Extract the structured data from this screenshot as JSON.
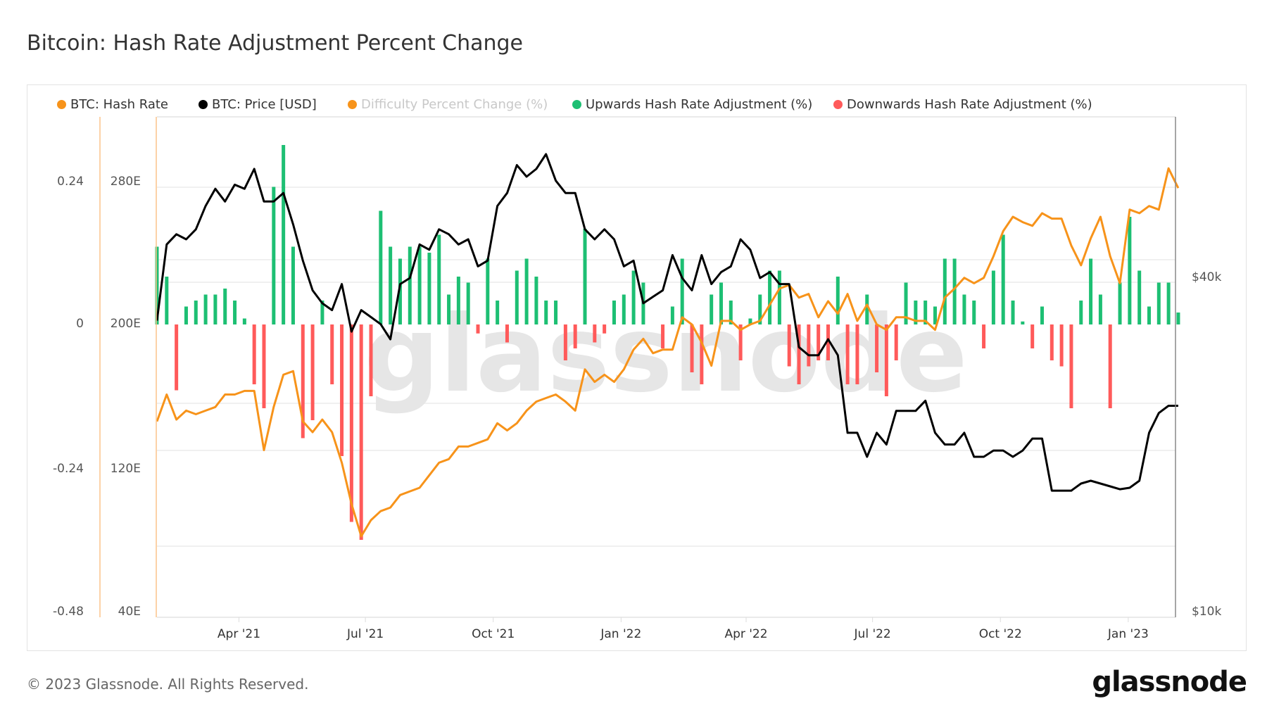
{
  "title": "Bitcoin: Hash Rate Adjustment Percent Change",
  "legend": [
    {
      "label": "BTC: Hash Rate",
      "color": "#f7931a",
      "active": true
    },
    {
      "label": "BTC: Price [USD]",
      "color": "#000000",
      "active": true
    },
    {
      "label": "Difficulty Percent Change (%)",
      "color": "#f7931a",
      "active": false
    },
    {
      "label": "Upwards Hash Rate Adjustment (%)",
      "color": "#1dbf73",
      "active": true
    },
    {
      "label": "Downwards Hash Rate Adjustment (%)",
      "color": "#ff5a5a",
      "active": true
    }
  ],
  "watermark": "glassnode",
  "footer": {
    "copyright": "© 2023 Glassnode. All Rights Reserved.",
    "logo": "glassnode"
  },
  "chart_data": {
    "type": "line+bar",
    "title": "Bitcoin: Hash Rate Adjustment Percent Change",
    "grid": true,
    "legend_position": "top",
    "x_ticks": [
      "Apr '21",
      "Jul '21",
      "Oct '21",
      "Jan '22",
      "Apr '22",
      "Jul '22",
      "Oct '22",
      "Jan '23"
    ],
    "y_axes": {
      "percent": {
        "ticks": [
          "0.24",
          "0",
          "-0.24",
          "-0.48"
        ],
        "range": [
          -0.48,
          0.24
        ]
      },
      "hash_rate": {
        "ticks": [
          "280E",
          "200E",
          "120E",
          "40E"
        ],
        "range": [
          40,
          280
        ]
      },
      "price": {
        "ticks": [
          "$40k",
          "$10k"
        ],
        "scale": "log"
      }
    },
    "x": [
      "2021-02-01",
      "2021-02-08",
      "2021-02-15",
      "2021-02-22",
      "2021-03-01",
      "2021-03-08",
      "2021-03-15",
      "2021-03-22",
      "2021-03-29",
      "2021-04-05",
      "2021-04-12",
      "2021-04-19",
      "2021-04-26",
      "2021-05-03",
      "2021-05-10",
      "2021-05-17",
      "2021-05-24",
      "2021-05-31",
      "2021-06-07",
      "2021-06-14",
      "2021-06-21",
      "2021-06-28",
      "2021-07-05",
      "2021-07-12",
      "2021-07-19",
      "2021-07-26",
      "2021-08-02",
      "2021-08-09",
      "2021-08-16",
      "2021-08-23",
      "2021-08-30",
      "2021-09-06",
      "2021-09-13",
      "2021-09-20",
      "2021-09-27",
      "2021-10-04",
      "2021-10-11",
      "2021-10-18",
      "2021-10-25",
      "2021-11-01",
      "2021-11-08",
      "2021-11-15",
      "2021-11-22",
      "2021-11-29",
      "2021-12-06",
      "2021-12-13",
      "2021-12-20",
      "2021-12-27",
      "2022-01-03",
      "2022-01-10",
      "2022-01-17",
      "2022-01-24",
      "2022-01-31",
      "2022-02-07",
      "2022-02-14",
      "2022-02-21",
      "2022-02-28",
      "2022-03-07",
      "2022-03-14",
      "2022-03-21",
      "2022-03-28",
      "2022-04-04",
      "2022-04-11",
      "2022-04-18",
      "2022-04-25",
      "2022-05-02",
      "2022-05-09",
      "2022-05-16",
      "2022-05-23",
      "2022-05-30",
      "2022-06-06",
      "2022-06-13",
      "2022-06-20",
      "2022-06-27",
      "2022-07-04",
      "2022-07-11",
      "2022-07-18",
      "2022-07-25",
      "2022-08-01",
      "2022-08-08",
      "2022-08-15",
      "2022-08-22",
      "2022-08-29",
      "2022-09-05",
      "2022-09-12",
      "2022-09-19",
      "2022-09-26",
      "2022-10-03",
      "2022-10-10",
      "2022-10-17",
      "2022-10-24",
      "2022-10-31",
      "2022-11-07",
      "2022-11-14",
      "2022-11-21",
      "2022-11-28",
      "2022-12-05",
      "2022-12-12",
      "2022-12-19",
      "2022-12-26",
      "2023-01-02",
      "2023-01-09",
      "2023-01-16",
      "2023-01-23",
      "2023-01-30",
      "2023-02-06"
    ],
    "series": [
      {
        "name": "BTC: Hash Rate",
        "axis": "hash_rate",
        "type": "line",
        "color": "#f7931a",
        "values": [
          146,
          161,
          147,
          152,
          150,
          152,
          154,
          161,
          161,
          163,
          163,
          130,
          154,
          172,
          174,
          146,
          140,
          147,
          140,
          123,
          100,
          82,
          91,
          96,
          98,
          105,
          107,
          109,
          116,
          123,
          125,
          132,
          132,
          134,
          136,
          145,
          141,
          145,
          152,
          157,
          159,
          161,
          157,
          152,
          175,
          168,
          172,
          168,
          175,
          186,
          192,
          184,
          186,
          186,
          204,
          200,
          190,
          177,
          202,
          202,
          197,
          200,
          202,
          211,
          220,
          222,
          215,
          217,
          204,
          213,
          206,
          217,
          202,
          211,
          200,
          197,
          204,
          204,
          202,
          202,
          197,
          215,
          220,
          226,
          223,
          226,
          238,
          252,
          260,
          257,
          255,
          262,
          259,
          259,
          244,
          233,
          248,
          260,
          238,
          223,
          264,
          262,
          266,
          264,
          287,
          276
        ]
      },
      {
        "name": "BTC: Price [USD]",
        "axis": "price",
        "type": "line",
        "color": "#000000",
        "values": [
          33500,
          46000,
          48000,
          47000,
          49000,
          54000,
          58000,
          55000,
          59000,
          58000,
          63000,
          55000,
          55000,
          57000,
          50000,
          43000,
          38000,
          36000,
          35000,
          39000,
          32000,
          35000,
          34000,
          33000,
          31000,
          39000,
          40000,
          46000,
          45000,
          49000,
          48000,
          46000,
          47000,
          42000,
          43000,
          54000,
          57000,
          64000,
          61000,
          63000,
          67000,
          60000,
          57000,
          57000,
          49000,
          47000,
          49000,
          47000,
          42000,
          43000,
          36000,
          37000,
          38000,
          44000,
          40000,
          38000,
          44000,
          39000,
          41000,
          42000,
          47000,
          45000,
          40000,
          41000,
          39000,
          39000,
          30000,
          29000,
          29000,
          31000,
          29000,
          21000,
          21000,
          19000,
          21000,
          20000,
          23000,
          23000,
          23000,
          24000,
          21000,
          20000,
          20000,
          21000,
          19000,
          19000,
          19500,
          19500,
          19000,
          19500,
          20500,
          20500,
          16500,
          16500,
          16500,
          17000,
          17200,
          17000,
          16800,
          16600,
          16700,
          17200,
          21000,
          22800,
          23500,
          23500
        ]
      },
      {
        "name": "Hash Rate Adjustment (%)",
        "axis": "percent",
        "type": "bar",
        "positive_series": "Upwards Hash Rate Adjustment (%)",
        "negative_series": "Downwards Hash Rate Adjustment (%)",
        "values": [
          0.13,
          0.08,
          -0.11,
          0.03,
          0.04,
          0.05,
          0.05,
          0.06,
          0.04,
          0.01,
          -0.1,
          -0.14,
          0.23,
          0.3,
          0.13,
          -0.19,
          -0.16,
          0.04,
          -0.1,
          -0.22,
          -0.33,
          -0.36,
          -0.12,
          0.19,
          0.13,
          0.11,
          0.13,
          0.13,
          0.12,
          0.15,
          0.05,
          0.08,
          0.07,
          -0.015,
          0.11,
          0.04,
          -0.03,
          0.09,
          0.11,
          0.08,
          0.04,
          0.04,
          -0.06,
          -0.04,
          0.16,
          -0.03,
          -0.015,
          0.04,
          0.05,
          0.09,
          0.07,
          0,
          -0.04,
          0.03,
          0.11,
          -0.08,
          -0.1,
          0.05,
          0.07,
          0.04,
          -0.06,
          0.01,
          0.05,
          0.09,
          0.09,
          -0.07,
          -0.1,
          -0.07,
          -0.06,
          -0.06,
          0.08,
          -0.1,
          -0.1,
          0.05,
          -0.08,
          -0.12,
          -0.06,
          0.07,
          0.04,
          0.04,
          0.03,
          0.11,
          0.11,
          0.05,
          0.04,
          -0.04,
          0.09,
          0.15,
          0.04,
          0.005,
          -0.04,
          0.03,
          -0.06,
          -0.07,
          -0.14,
          0.04,
          0.11,
          0.05,
          -0.14,
          0.07,
          0.18,
          0.09,
          0.03,
          0.07,
          0.07,
          0.02
        ]
      }
    ]
  }
}
